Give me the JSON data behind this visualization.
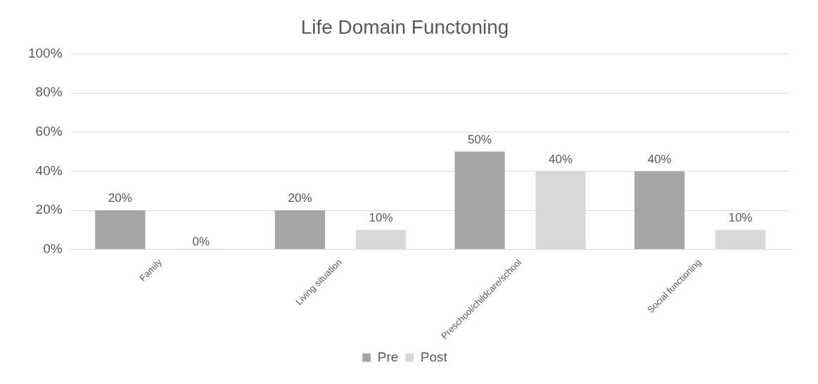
{
  "chart_data": {
    "type": "bar",
    "title": "Life Domain Functoning",
    "categories": [
      "Family",
      "Living situation",
      "Preschool/childcare/school",
      "Social functioning"
    ],
    "series": [
      {
        "name": "Pre",
        "color": "#a6a6a6",
        "values": [
          20,
          20,
          50,
          40
        ],
        "value_labels": [
          "20%",
          "20%",
          "50%",
          "40%"
        ]
      },
      {
        "name": "Post",
        "color": "#d9d9d9",
        "values": [
          0,
          10,
          40,
          10
        ],
        "value_labels": [
          "0%",
          "10%",
          "40%",
          "10%"
        ]
      }
    ],
    "ylim": [
      0,
      100
    ],
    "yticks": [
      {
        "value": 0,
        "label": "0%"
      },
      {
        "value": 20,
        "label": "20%"
      },
      {
        "value": 40,
        "label": "40%"
      },
      {
        "value": 60,
        "label": "60%"
      },
      {
        "value": 80,
        "label": "80%"
      },
      {
        "value": 100,
        "label": "100%"
      }
    ],
    "grid": "y",
    "legend": "bottom"
  }
}
